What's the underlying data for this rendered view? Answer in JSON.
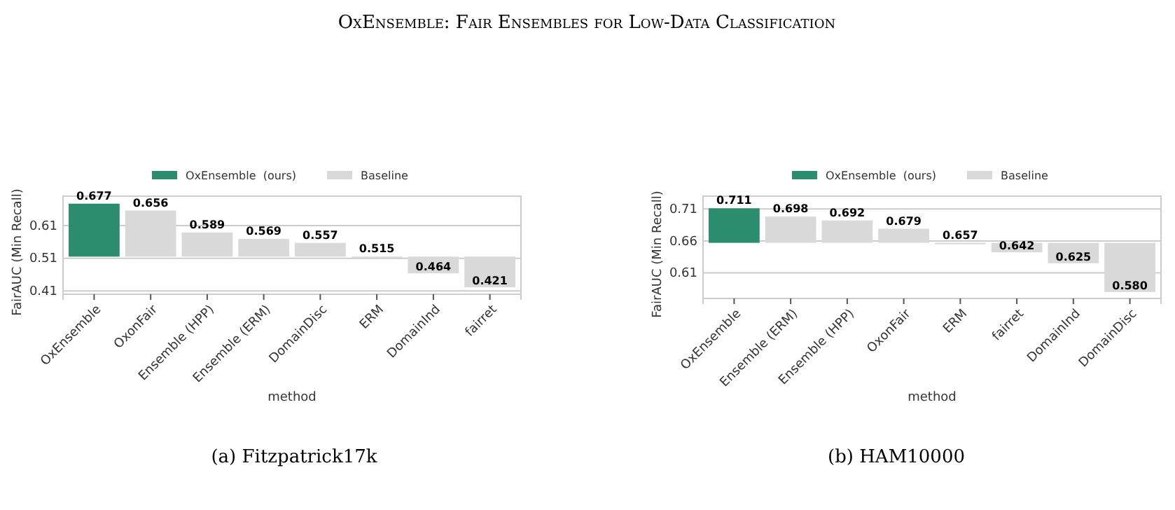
{
  "chart_data": [
    {
      "type": "bar",
      "title": "OxEnsemble: Fair Ensembles for Low-Data Classification",
      "xlabel": "method",
      "ylabel": "FairAUC (Min Recall)",
      "categories": [
        "OxEnsemble",
        "OxonFair",
        "Ensemble (HPP)",
        "Ensemble (ERM)",
        "DomainDisc",
        "ERM",
        "DomainInd",
        "fairret"
      ],
      "series": [
        {
          "name": "OxEnsemble  (ours)",
          "color": "#2b8c6e",
          "base": [
            0.515,
            null,
            null,
            null,
            null,
            null,
            null,
            null
          ],
          "values": [
            0.162,
            null,
            null,
            null,
            null,
            null,
            null,
            null
          ],
          "value_labels": [
            "0.677",
            null,
            null,
            null,
            null,
            null,
            null,
            null
          ]
        },
        {
          "name": "Baseline",
          "color": "#d9d9d9",
          "base": [
            null,
            0.515,
            0.515,
            0.515,
            0.515,
            0.515,
            0.515,
            0.515
          ],
          "values": [
            null,
            0.141,
            0.074,
            0.054,
            0.042,
            0,
            -0.051,
            -0.094
          ],
          "value_labels": [
            null,
            "0.656",
            "0.589",
            "0.569",
            "0.557",
            "0.515",
            "0.464",
            "0.421"
          ]
        }
      ],
      "ylim": [
        0.4,
        0.7
      ],
      "yticks": [
        0.41,
        0.51,
        0.61
      ],
      "grid": "y",
      "legend": "top",
      "annotations": [
        "(a) Fitzpatrick17k"
      ]
    },
    {
      "type": "bar",
      "xlabel": "method",
      "ylabel": "FairAUC (Min Recall)",
      "categories": [
        "OxEnsemble",
        "Ensemble (ERM)",
        "Ensemble (HPP)",
        "OxonFair",
        "ERM",
        "fairret",
        "DomainInd",
        "DomainDisc"
      ],
      "series": [
        {
          "name": "OxEnsemble  (ours)",
          "color": "#2b8c6e",
          "base": [
            0.657,
            null,
            null,
            null,
            null,
            null,
            null,
            null
          ],
          "values": [
            0.054,
            null,
            null,
            null,
            null,
            null,
            null,
            null
          ],
          "value_labels": [
            "0.711",
            null,
            null,
            null,
            null,
            null,
            null,
            null
          ]
        },
        {
          "name": "Baseline",
          "color": "#d9d9d9",
          "base": [
            null,
            0.657,
            0.657,
            0.657,
            0.657,
            0.657,
            0.657,
            0.657
          ],
          "values": [
            null,
            0.041,
            0.035,
            0.022,
            0,
            -0.015,
            -0.032,
            -0.077
          ],
          "value_labels": [
            null,
            "0.698",
            "0.692",
            "0.679",
            "0.657",
            "0.642",
            "0.625",
            "0.580"
          ]
        }
      ],
      "ylim": [
        0.57,
        0.73
      ],
      "yticks": [
        0.61,
        0.66,
        0.71
      ],
      "grid": "y",
      "legend": "top",
      "annotations": [
        "(b) HAM10000"
      ]
    }
  ]
}
